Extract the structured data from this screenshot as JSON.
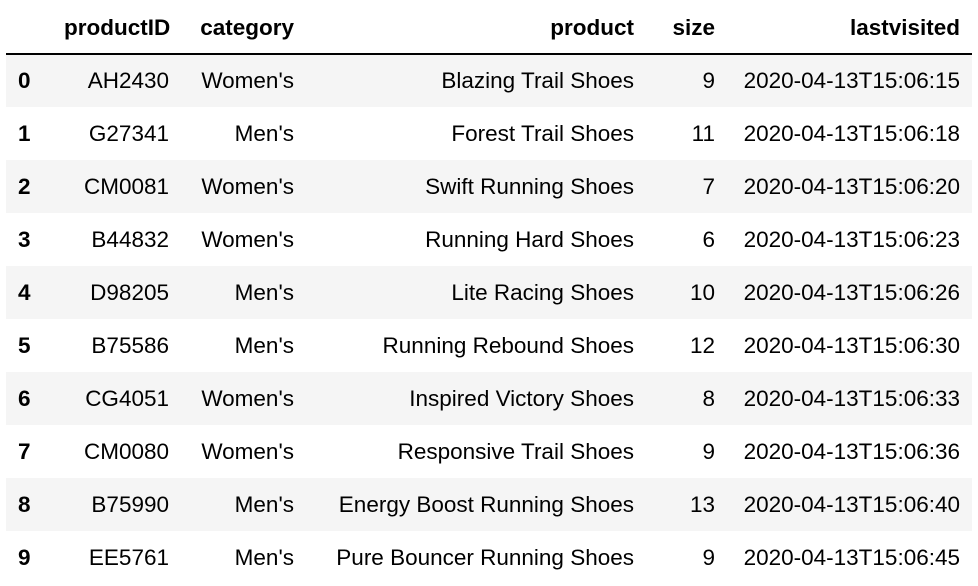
{
  "table": {
    "columns": [
      "",
      "productID",
      "category",
      "product",
      "size",
      "lastvisited"
    ],
    "rows": [
      {
        "index": "0",
        "productID": "AH2430",
        "category": "Women's",
        "product": "Blazing Trail Shoes",
        "size": "9",
        "lastvisited": "2020-04-13T15:06:15"
      },
      {
        "index": "1",
        "productID": "G27341",
        "category": "Men's",
        "product": "Forest Trail Shoes",
        "size": "11",
        "lastvisited": "2020-04-13T15:06:18"
      },
      {
        "index": "2",
        "productID": "CM0081",
        "category": "Women's",
        "product": "Swift Running Shoes",
        "size": "7",
        "lastvisited": "2020-04-13T15:06:20"
      },
      {
        "index": "3",
        "productID": "B44832",
        "category": "Women's",
        "product": "Running Hard Shoes",
        "size": "6",
        "lastvisited": "2020-04-13T15:06:23"
      },
      {
        "index": "4",
        "productID": "D98205",
        "category": "Men's",
        "product": "Lite Racing Shoes",
        "size": "10",
        "lastvisited": "2020-04-13T15:06:26"
      },
      {
        "index": "5",
        "productID": "B75586",
        "category": "Men's",
        "product": "Running Rebound Shoes",
        "size": "12",
        "lastvisited": "2020-04-13T15:06:30"
      },
      {
        "index": "6",
        "productID": "CG4051",
        "category": "Women's",
        "product": "Inspired Victory Shoes",
        "size": "8",
        "lastvisited": "2020-04-13T15:06:33"
      },
      {
        "index": "7",
        "productID": "CM0080",
        "category": "Women's",
        "product": "Responsive Trail Shoes",
        "size": "9",
        "lastvisited": "2020-04-13T15:06:36"
      },
      {
        "index": "8",
        "productID": "B75990",
        "category": "Men's",
        "product": "Energy Boost Running Shoes",
        "size": "13",
        "lastvisited": "2020-04-13T15:06:40"
      },
      {
        "index": "9",
        "productID": "EE5761",
        "category": "Men's",
        "product": "Pure Bouncer Running Shoes",
        "size": "9",
        "lastvisited": "2020-04-13T15:06:45"
      }
    ]
  },
  "colors": {
    "stripe": "#f5f5f5",
    "background": "#ffffff",
    "header_rule": "#000000",
    "text": "#000000"
  }
}
